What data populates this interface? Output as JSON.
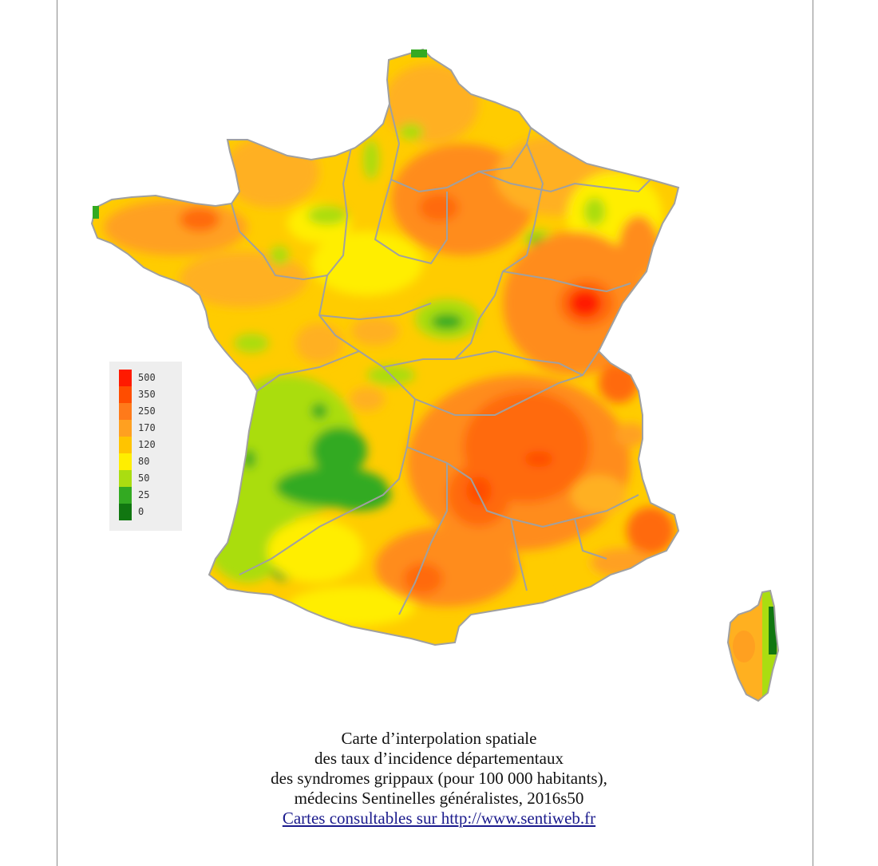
{
  "legend": {
    "items": [
      {
        "label": "500",
        "color": "#ff1a00"
      },
      {
        "label": "350",
        "color": "#ff4d00"
      },
      {
        "label": "250",
        "color": "#ff7a1a"
      },
      {
        "label": "170",
        "color": "#ffa020"
      },
      {
        "label": "120",
        "color": "#ffc400"
      },
      {
        "label": "80",
        "color": "#ffee00"
      },
      {
        "label": "50",
        "color": "#aadd11"
      },
      {
        "label": "25",
        "color": "#33aa22"
      },
      {
        "label": "0",
        "color": "#117711"
      }
    ]
  },
  "caption": {
    "line1": "Carte d’interpolation spatiale",
    "line2": "des taux d’incidence départementaux",
    "line3": "des syndromes grippaux (pour 100 000 habitants),",
    "line4": "médecins Sentinelles généralistes, 2016s50",
    "link_text": "Cartes consultables sur http://www.sentiweb.fr"
  },
  "colors": {
    "border": "#a0a0a0",
    "red": "#ff1a00",
    "dark_orange": "#ff6a0a",
    "orange": "#ff8c1a",
    "light_orange": "#ffb020",
    "yellow_orange": "#ffcc00",
    "yellow": "#ffee00",
    "light_green": "#aadd11",
    "green": "#33aa22",
    "dark_green": "#117711"
  }
}
